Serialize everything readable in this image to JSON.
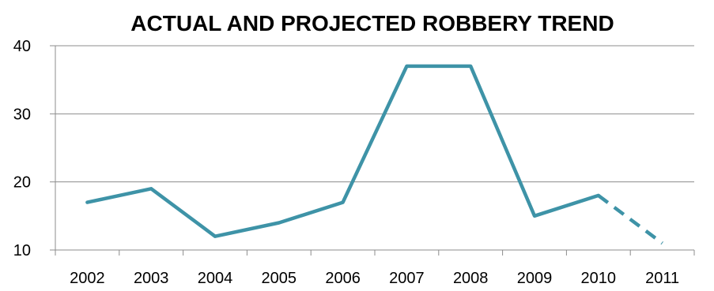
{
  "chart_data": {
    "type": "line",
    "title": "ACTUAL AND PROJECTED ROBBERY TREND",
    "xlabel": "",
    "ylabel": "",
    "categories": [
      "2002",
      "2003",
      "2004",
      "2005",
      "2006",
      "2007",
      "2008",
      "2009",
      "2010",
      "2011"
    ],
    "series": [
      {
        "values": [
          17,
          19,
          12,
          14,
          17,
          37,
          37,
          15,
          18,
          11
        ],
        "color": "#3E93A7",
        "solid_through": "2010",
        "projected_from": "2010",
        "projected_style": "dashed"
      }
    ],
    "ylim": [
      10,
      40
    ],
    "yticks": [
      10,
      20,
      30,
      40
    ],
    "grid": true,
    "legend": "none"
  }
}
